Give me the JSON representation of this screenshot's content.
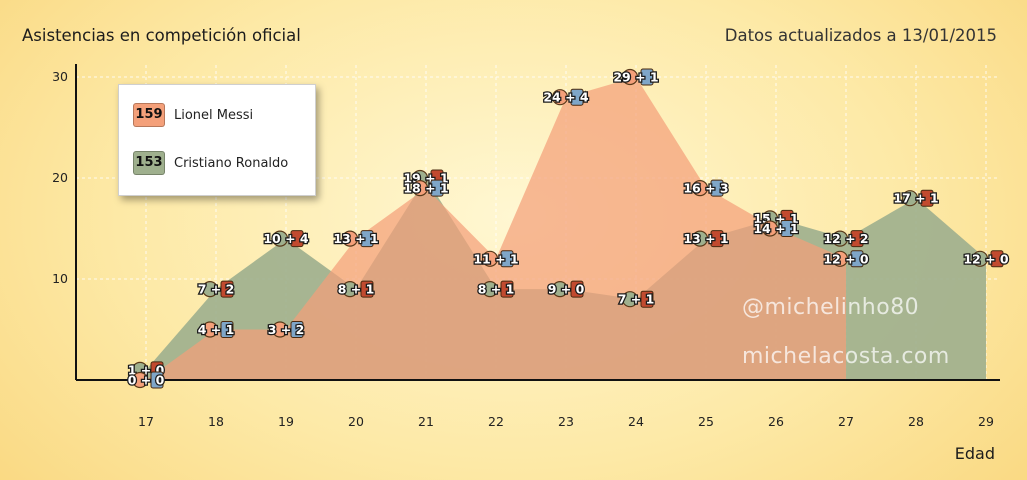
{
  "header": {
    "title": "Asistencias en competición oficial",
    "updated": "Datos actualizados a 13/01/2015"
  },
  "watermarks": [
    "@michelinho80",
    "michelacosta.com"
  ],
  "colors": {
    "messi": "#f4a07a",
    "ronaldo": "#9fb08e",
    "overlap": "#b08c76"
  },
  "legend": [
    {
      "total": "159",
      "name": "Lionel Messi"
    },
    {
      "total": "153",
      "name": "Cristiano Ronaldo"
    }
  ],
  "chart_data": {
    "type": "area",
    "title": "Asistencias en competición oficial",
    "xlabel": "Edad",
    "ylabel": "",
    "xlim": [
      17,
      29
    ],
    "ylim": [
      0,
      30
    ],
    "x_ticks": [
      17,
      18,
      19,
      20,
      21,
      22,
      23,
      24,
      25,
      26,
      27,
      28,
      29
    ],
    "y_ticks": [
      10,
      20,
      30
    ],
    "grid": true,
    "legend_position": "top-left",
    "series": [
      {
        "name": "Lionel Messi",
        "total": 159,
        "x": [
          17,
          18,
          19,
          20,
          21,
          22,
          23,
          24,
          25,
          26,
          27
        ],
        "values": [
          0,
          5,
          5,
          14,
          19,
          12,
          28,
          30,
          19,
          15,
          12
        ],
        "labels": [
          "0+0",
          "4+1",
          "3+2",
          "13+1",
          "18+1",
          "11+1",
          "24+4",
          "29+1",
          "16+3",
          "14+1",
          "12+0"
        ]
      },
      {
        "name": "Cristiano Ronaldo",
        "total": 153,
        "x": [
          17,
          18,
          19,
          20,
          21,
          22,
          23,
          24,
          25,
          26,
          27,
          28,
          29
        ],
        "values": [
          1,
          9,
          14,
          9,
          20,
          9,
          9,
          8,
          14,
          16,
          14,
          18,
          12
        ],
        "labels": [
          "1+0",
          "7+2",
          "10+4",
          "8+1",
          "19+1",
          "8+1",
          "9+0",
          "7+1",
          "13+1",
          "15+1",
          "12+2",
          "17+1",
          "12+0"
        ]
      }
    ]
  }
}
